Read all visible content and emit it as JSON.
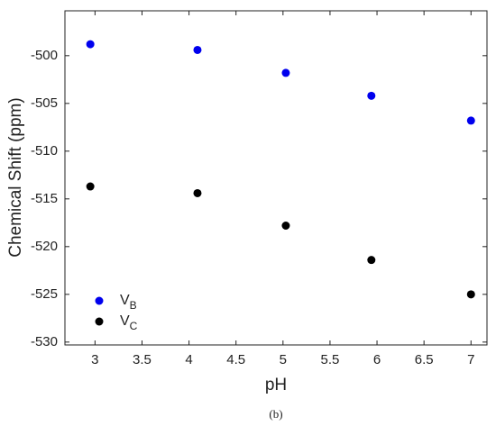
{
  "chart_data": {
    "type": "scatter",
    "xlabel": "pH",
    "ylabel": "Chemical Shift (ppm)",
    "caption": "(b)",
    "xlim": [
      2.68,
      7.17
    ],
    "xticks": [
      3,
      3.5,
      4,
      4.5,
      5,
      5.5,
      6,
      6.5,
      7
    ],
    "ylim": [
      -530.3,
      -495.3
    ],
    "yticks": [
      -530,
      -525,
      -520,
      -515,
      -510,
      -505,
      -500
    ],
    "legend": "lower left",
    "series": [
      {
        "name": "VB",
        "color": "#0000ee",
        "x": [
          2.95,
          4.09,
          5.03,
          5.94,
          7.0
        ],
        "values": [
          -498.8,
          -499.4,
          -501.8,
          -504.2,
          -506.8
        ]
      },
      {
        "name": "VC",
        "color": "#000000",
        "x": [
          2.95,
          4.09,
          5.03,
          5.94,
          7.0
        ],
        "values": [
          -513.7,
          -514.4,
          -517.8,
          -521.4,
          -525.0
        ]
      }
    ]
  }
}
